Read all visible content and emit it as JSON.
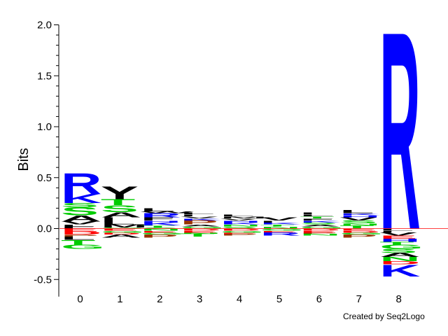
{
  "chart_data": {
    "type": "sequence-logo",
    "ylabel": "Bits",
    "ylim": [
      -0.6,
      2.0
    ],
    "yticks": [
      "2.0",
      "1.5",
      "1.0",
      "0.5",
      "0.0",
      "-0.5"
    ],
    "ytick_values": [
      2.0,
      1.5,
      1.0,
      0.5,
      0.0,
      -0.5
    ],
    "positions": [
      "0",
      "1",
      "2",
      "3",
      "4",
      "5",
      "6",
      "7",
      "8"
    ],
    "credit": "Created by Seq2Logo",
    "colors": {
      "basic": "#0000ff",
      "hydrophobic": "#000000",
      "polar": "#00cc00",
      "acidic": "#ff0000",
      "proline": "#993300",
      "zero_line": "#ff0000"
    },
    "columns": [
      {
        "pos": "0",
        "positive": [
          {
            "aa": "I",
            "bits": 0.01
          },
          {
            "aa": "F",
            "bits": 0.01
          },
          {
            "aa": "L",
            "bits": 0.02
          },
          {
            "aa": "V",
            "bits": 0.03
          },
          {
            "aa": "A",
            "bits": 0.06
          },
          {
            "aa": "S",
            "bits": 0.08
          },
          {
            "aa": "S",
            "bits": 0.04
          },
          {
            "aa": "K",
            "bits": 0.09
          },
          {
            "aa": "R",
            "bits": 0.21
          }
        ],
        "negative": [
          {
            "aa": "E",
            "bits": 0.03
          },
          {
            "aa": "D",
            "bits": 0.03
          },
          {
            "aa": "P",
            "bits": 0.02
          },
          {
            "aa": "L",
            "bits": 0.03
          },
          {
            "aa": "T",
            "bits": 0.05
          },
          {
            "aa": "G",
            "bits": 0.04
          }
        ]
      },
      {
        "pos": "1",
        "positive": [
          {
            "aa": "G",
            "bits": 0.01
          },
          {
            "aa": "M",
            "bits": 0.03
          },
          {
            "aa": "L",
            "bits": 0.03
          },
          {
            "aa": "I",
            "bits": 0.04
          },
          {
            "aa": "A",
            "bits": 0.05
          },
          {
            "aa": "S",
            "bits": 0.07
          },
          {
            "aa": "T",
            "bits": 0.06
          },
          {
            "aa": "Y",
            "bits": 0.13
          }
        ],
        "negative": [
          {
            "aa": "E",
            "bits": 0.02
          },
          {
            "aa": "G",
            "bits": 0.02
          },
          {
            "aa": "D",
            "bits": 0.02
          },
          {
            "aa": "A",
            "bits": 0.03
          }
        ]
      },
      {
        "pos": "2",
        "positive": [
          {
            "aa": "S",
            "bits": 0.01
          },
          {
            "aa": "T",
            "bits": 0.02
          },
          {
            "aa": "K",
            "bits": 0.03
          },
          {
            "aa": "H",
            "bits": 0.02
          },
          {
            "aa": "F",
            "bits": 0.03
          },
          {
            "aa": "R",
            "bits": 0.04
          },
          {
            "aa": "W",
            "bits": 0.02
          },
          {
            "aa": "L",
            "bits": 0.03
          }
        ],
        "negative": [
          {
            "aa": "N",
            "bits": 0.02
          },
          {
            "aa": "E",
            "bits": 0.02
          },
          {
            "aa": "G",
            "bits": 0.02
          },
          {
            "aa": "P",
            "bits": 0.03
          }
        ]
      },
      {
        "pos": "3",
        "positive": [
          {
            "aa": "G",
            "bits": 0.02
          },
          {
            "aa": "A",
            "bits": 0.02
          },
          {
            "aa": "P",
            "bits": 0.04
          },
          {
            "aa": "K",
            "bits": 0.02
          },
          {
            "aa": "V",
            "bits": 0.02
          },
          {
            "aa": "I",
            "bits": 0.02
          },
          {
            "aa": "L",
            "bits": 0.02
          }
        ],
        "negative": [
          {
            "aa": "D",
            "bits": 0.02
          },
          {
            "aa": "E",
            "bits": 0.02
          },
          {
            "aa": "N",
            "bits": 0.01
          },
          {
            "aa": "T",
            "bits": 0.03
          }
        ]
      },
      {
        "pos": "4",
        "positive": [
          {
            "aa": "S",
            "bits": 0.02
          },
          {
            "aa": "N",
            "bits": 0.02
          },
          {
            "aa": "K",
            "bits": 0.02
          },
          {
            "aa": "H",
            "bits": 0.02
          },
          {
            "aa": "V",
            "bits": 0.02
          },
          {
            "aa": "M",
            "bits": 0.02
          },
          {
            "aa": "L",
            "bits": 0.02
          }
        ],
        "negative": [
          {
            "aa": "D",
            "bits": 0.02
          },
          {
            "aa": "G",
            "bits": 0.02
          },
          {
            "aa": "E",
            "bits": 0.01
          },
          {
            "aa": "P",
            "bits": 0.02
          }
        ]
      },
      {
        "pos": "5",
        "positive": [
          {
            "aa": "N",
            "bits": 0.02
          },
          {
            "aa": "T",
            "bits": 0.02
          },
          {
            "aa": "K",
            "bits": 0.02
          },
          {
            "aa": "I",
            "bits": 0.02
          },
          {
            "aa": "V",
            "bits": 0.03
          }
        ],
        "negative": [
          {
            "aa": "G",
            "bits": 0.02
          },
          {
            "aa": "E",
            "bits": 0.02
          },
          {
            "aa": "R",
            "bits": 0.03
          }
        ]
      },
      {
        "pos": "6",
        "positive": [
          {
            "aa": "G",
            "bits": 0.02
          },
          {
            "aa": "A",
            "bits": 0.02
          },
          {
            "aa": "S",
            "bits": 0.02
          },
          {
            "aa": "K",
            "bits": 0.02
          },
          {
            "aa": "F",
            "bits": 0.02
          },
          {
            "aa": "T",
            "bits": 0.02
          },
          {
            "aa": "L",
            "bits": 0.02
          },
          {
            "aa": "I",
            "bits": 0.02
          }
        ],
        "negative": [
          {
            "aa": "D",
            "bits": 0.02
          },
          {
            "aa": "E",
            "bits": 0.02
          },
          {
            "aa": "P",
            "bits": 0.01
          },
          {
            "aa": "N",
            "bits": 0.02
          }
        ]
      },
      {
        "pos": "7",
        "positive": [
          {
            "aa": "T",
            "bits": 0.03
          },
          {
            "aa": "N",
            "bits": 0.02
          },
          {
            "aa": "S",
            "bits": 0.03
          },
          {
            "aa": "V",
            "bits": 0.03
          },
          {
            "aa": "H",
            "bits": 0.02
          },
          {
            "aa": "K",
            "bits": 0.02
          },
          {
            "aa": "L",
            "bits": 0.03
          }
        ],
        "negative": [
          {
            "aa": "E",
            "bits": 0.02
          },
          {
            "aa": "D",
            "bits": 0.02
          },
          {
            "aa": "G",
            "bits": 0.02
          },
          {
            "aa": "P",
            "bits": 0.03
          }
        ]
      },
      {
        "pos": "8",
        "positive": [
          {
            "aa": "R",
            "bits": 2.0
          }
        ],
        "negative": [
          {
            "aa": "L",
            "bits": 0.02
          },
          {
            "aa": "I",
            "bits": 0.02
          },
          {
            "aa": "V",
            "bits": 0.03
          },
          {
            "aa": "E",
            "bits": 0.03
          },
          {
            "aa": "H",
            "bits": 0.03
          },
          {
            "aa": "T",
            "bits": 0.03
          },
          {
            "aa": "G",
            "bits": 0.04
          },
          {
            "aa": "S",
            "bits": 0.04
          },
          {
            "aa": "A",
            "bits": 0.04
          },
          {
            "aa": "N",
            "bits": 0.04
          },
          {
            "aa": "D",
            "bits": 0.03
          },
          {
            "aa": "K",
            "bits": 0.12
          }
        ]
      }
    ]
  }
}
